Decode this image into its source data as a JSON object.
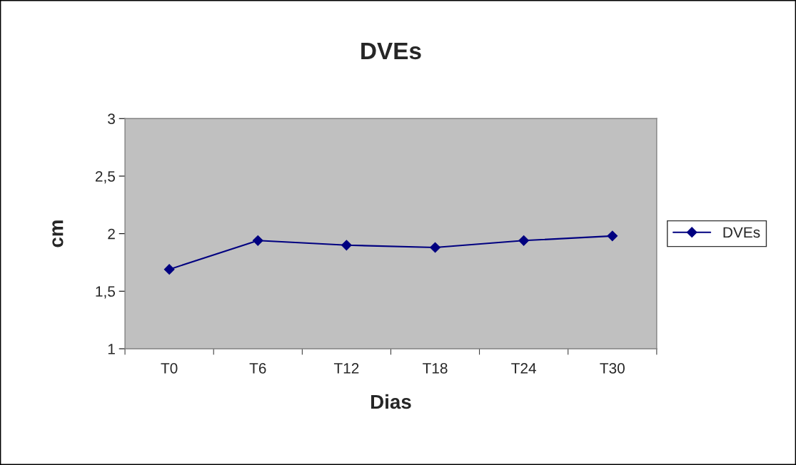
{
  "chart_data": {
    "type": "line",
    "title": "DVEs",
    "xlabel": "Dias",
    "ylabel": "cm",
    "categories": [
      "T0",
      "T6",
      "T12",
      "T18",
      "T24",
      "T30"
    ],
    "series": [
      {
        "name": "DVEs",
        "color": "#000080",
        "values": [
          1.69,
          1.94,
          1.9,
          1.88,
          1.94,
          1.98
        ]
      }
    ],
    "ylim": [
      1,
      3
    ],
    "yticks": [
      1,
      {
        "value": 1.5,
        "label": "1,5"
      },
      2,
      {
        "value": 2.5,
        "label": "2,5"
      },
      3
    ],
    "grid": false,
    "legend": "right",
    "marker": "diamond",
    "line_style": "solid"
  }
}
